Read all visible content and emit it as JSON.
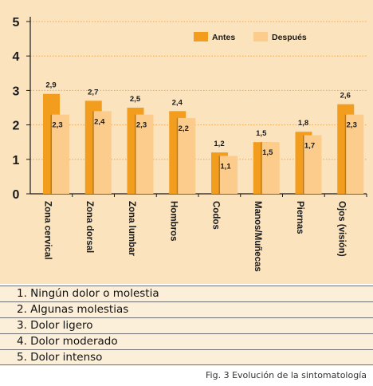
{
  "chart_data": {
    "type": "bar",
    "categories": [
      "Zona  cervical",
      "Zona  dorsal",
      "Zona lumbar",
      "Hombros",
      "Codos",
      "Manos/Muñecas",
      "Piernas",
      "Ojos (visión)"
    ],
    "series": [
      {
        "name": "Antes",
        "values": [
          2.9,
          2.7,
          2.5,
          2.4,
          1.2,
          1.5,
          1.8,
          2.6
        ],
        "labels": [
          "2,9",
          "2,7",
          "2,5",
          "2,4",
          "1,2",
          "1,5",
          "1,8",
          "2,6"
        ]
      },
      {
        "name": "Después",
        "values": [
          2.3,
          2.4,
          2.3,
          2.2,
          1.1,
          1.5,
          1.7,
          2.3
        ],
        "labels": [
          "2,3",
          "2,4",
          "2,3",
          "2,2",
          "1,1",
          "1,5",
          "1,7",
          "2,3"
        ]
      }
    ],
    "ylim": [
      0,
      5
    ],
    "yticks": [
      "0",
      "1",
      "2",
      "3",
      "4",
      "5"
    ],
    "grid": true,
    "legend": "top-right",
    "title": "",
    "xlabel": "",
    "ylabel": ""
  },
  "colors": {
    "before": "#f39d1e",
    "before_shadow": "#b8781c",
    "after": "#fccc8c",
    "panel": "#fbe3be",
    "grid": "#f3a64a"
  },
  "scale": {
    "items": [
      "1. Ningún dolor o molestia",
      "2. Algunas molestias",
      "3. Dolor ligero",
      "4. Dolor moderado",
      "5. Dolor intenso"
    ]
  },
  "caption": "Fig. 3 Evolución de la sintomatología"
}
